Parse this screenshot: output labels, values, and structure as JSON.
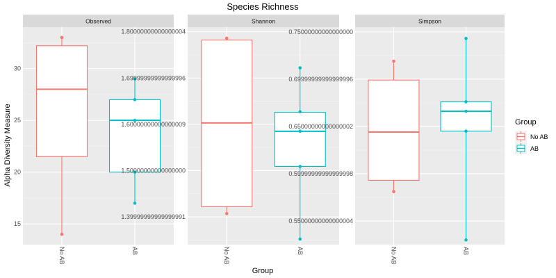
{
  "chart_data": {
    "type": "boxplot",
    "title": "Species Richness",
    "xlabel": "Group",
    "ylabel": "Alpha Diversity Measure",
    "categories": [
      "No AB",
      "AB"
    ],
    "legend": {
      "title": "Group",
      "position": "right",
      "entries": [
        {
          "label": "No AB",
          "color": "#F8766D"
        },
        {
          "label": "AB",
          "color": "#00BFC4"
        }
      ]
    },
    "grid": true,
    "panels": [
      {
        "name": "Observed",
        "ylim": [
          13.0,
          34.0
        ],
        "yticks": [
          15,
          20,
          25,
          30
        ],
        "boxes": [
          {
            "group": "No AB",
            "min": 14,
            "q1": 21.5,
            "median": 28,
            "q3": 32.2,
            "max": 33,
            "points": [
              33,
              14
            ]
          },
          {
            "group": "AB",
            "min": 17,
            "q1": 20,
            "median": 25,
            "q3": 27,
            "max": 29,
            "points": [
              29,
              27,
              25,
              20,
              17
            ]
          }
        ]
      },
      {
        "name": "Shannon",
        "ylim": [
          1.34,
          1.81
        ],
        "yticks": [
          1.4,
          1.5,
          1.6,
          1.7,
          1.8
        ],
        "boxes": [
          {
            "group": "No AB",
            "min": 1.407,
            "q1": 1.422,
            "median": 1.603,
            "q3": 1.782,
            "max": 1.786,
            "points": [
              1.786,
              1.407
            ]
          },
          {
            "group": "AB",
            "min": 1.352,
            "q1": 1.509,
            "median": 1.585,
            "q3": 1.626,
            "max": 1.722,
            "points": [
              1.722,
              1.627,
              1.585,
              1.509,
              1.352
            ]
          }
        ]
      },
      {
        "name": "Simpson",
        "ylim": [
          0.525,
          0.755
        ],
        "yticks": [
          0.55,
          0.6,
          0.65,
          0.7,
          0.75
        ],
        "boxes": [
          {
            "group": "No AB",
            "min": 0.581,
            "q1": 0.593,
            "median": 0.644,
            "q3": 0.699,
            "max": 0.719,
            "points": [
              0.719,
              0.581
            ]
          },
          {
            "group": "AB",
            "min": 0.53,
            "q1": 0.645,
            "median": 0.666,
            "q3": 0.676,
            "max": 0.743,
            "points": [
              0.743,
              0.676,
              0.666,
              0.645,
              0.53
            ]
          }
        ]
      }
    ]
  }
}
